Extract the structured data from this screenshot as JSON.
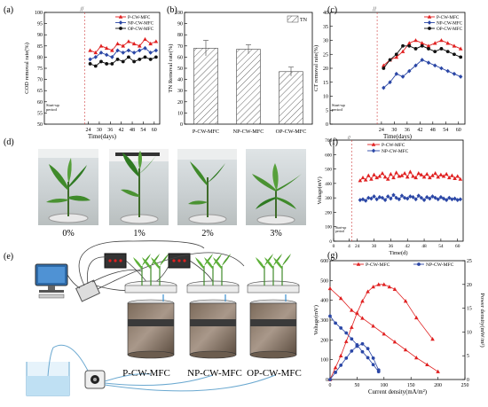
{
  "colors": {
    "p": "#e02020",
    "np": "#2b47a6",
    "op": "#111111",
    "hatch": "#666666",
    "plant": "#3f8a2a"
  },
  "chart_data": [
    {
      "panel": "(a)",
      "type": "line",
      "xlabel": "Time(days)",
      "ylabel": "COD removal rate(%)",
      "xticks": [
        24,
        30,
        36,
        42,
        48,
        54,
        60
      ],
      "xlim": [
        0,
        63
      ],
      "yticks": [
        50,
        55,
        60,
        65,
        70,
        75,
        80,
        85,
        90,
        95,
        100
      ],
      "ylim": [
        50,
        100
      ],
      "annotation": "Start-up period",
      "break": "//",
      "x": [
        25,
        28,
        31,
        34,
        37,
        40,
        43,
        46,
        49,
        52,
        55,
        58,
        61
      ],
      "series": [
        {
          "name": "P-CW-MFC",
          "color": "#e02020",
          "values": [
            83,
            82,
            85,
            84,
            83,
            86,
            85,
            87,
            86,
            85,
            88,
            86,
            87
          ]
        },
        {
          "name": "NP-CW-MFC",
          "color": "#2b47a6",
          "values": [
            79,
            80,
            82,
            81,
            80,
            83,
            82,
            83,
            82,
            83,
            84,
            82,
            83
          ]
        },
        {
          "name": "OP-CW-MFC",
          "color": "#111111",
          "values": [
            77,
            76,
            78,
            77,
            77,
            79,
            78,
            80,
            78,
            79,
            80,
            79,
            80
          ]
        }
      ]
    },
    {
      "panel": "(b)",
      "type": "bar",
      "ylabel": "TN Removal rate(%)",
      "legend": "TN",
      "categories": [
        "P-CW-MFC",
        "NP-CW-MFC",
        "OP-CW-MFC"
      ],
      "values": [
        68,
        67,
        47
      ],
      "errors": [
        7,
        4,
        4
      ],
      "yticks": [
        0,
        10,
        20,
        30,
        40,
        50,
        60,
        70,
        80,
        90,
        100
      ],
      "ylim": [
        0,
        100
      ]
    },
    {
      "panel": "(c)",
      "type": "line",
      "xlabel": "Time(days)",
      "ylabel": "CT removal rate(%)",
      "xticks": [
        24,
        30,
        36,
        42,
        48,
        54,
        60
      ],
      "xlim": [
        0,
        63
      ],
      "yticks": [
        0,
        5,
        10,
        15,
        20,
        25,
        30,
        35,
        40
      ],
      "ylim": [
        0,
        40
      ],
      "annotation": "Start-up period",
      "break": "//",
      "x": [
        25,
        28,
        31,
        34,
        37,
        40,
        43,
        46,
        49,
        52,
        55,
        58,
        61
      ],
      "series": [
        {
          "name": "P-CW-MFC",
          "color": "#e02020",
          "values": [
            21,
            23,
            24,
            26,
            29,
            30,
            29,
            28,
            29,
            30,
            29,
            28,
            27
          ]
        },
        {
          "name": "NP-CW-MFC",
          "color": "#2b47a6",
          "values": [
            13,
            15,
            18,
            17,
            19,
            21,
            23,
            22,
            21,
            20,
            19,
            18,
            17
          ]
        },
        {
          "name": "OP-CW-MFC",
          "color": "#111111",
          "values": [
            20,
            23,
            25,
            28,
            28,
            27,
            28,
            27,
            26,
            27,
            26,
            25,
            24
          ]
        }
      ]
    },
    {
      "panel": "(f)",
      "type": "line",
      "xlabel": "Time(d)",
      "ylabel": "Voltage(mV)",
      "xticks": [
        0,
        4,
        24,
        30,
        36,
        42,
        48,
        54,
        60
      ],
      "xlim": [
        0,
        62
      ],
      "yticks": [
        0,
        100,
        200,
        300,
        400,
        500,
        600,
        700
      ],
      "ylim": [
        0,
        700
      ],
      "annotation": "Start-up period",
      "break": "//",
      "x": [
        25,
        26,
        27,
        28,
        29,
        30,
        31,
        32,
        33,
        34,
        35,
        36,
        37,
        38,
        39,
        40,
        41,
        42,
        43,
        44,
        45,
        46,
        47,
        48,
        49,
        50,
        51,
        52,
        53,
        54,
        55,
        56,
        57,
        58,
        59,
        60,
        61
      ],
      "series": [
        {
          "name": "P-CW-MFC",
          "color": "#e02020",
          "values": [
            420,
            440,
            425,
            455,
            430,
            460,
            440,
            450,
            470,
            445,
            430,
            465,
            440,
            475,
            450,
            455,
            470,
            445,
            480,
            450,
            440,
            470,
            460,
            445,
            465,
            440,
            455,
            470,
            445,
            460,
            450,
            465,
            440,
            455,
            435,
            450,
            430
          ]
        },
        {
          "name": "NP-CW-MFC",
          "color": "#2b47a6",
          "values": [
            285,
            290,
            280,
            300,
            295,
            310,
            290,
            305,
            300,
            285,
            310,
            295,
            320,
            300,
            290,
            315,
            300,
            295,
            310,
            305,
            290,
            315,
            300,
            285,
            305,
            295,
            310,
            300,
            290,
            305,
            295,
            285,
            300,
            290,
            295,
            285,
            290
          ]
        }
      ]
    },
    {
      "panel": "(g)",
      "type": "line",
      "xlabel": "Current density(mA/m²)",
      "ylabel": "Voltage(mV)",
      "y2label": "Power density(mW/m²)",
      "xticks": [
        0,
        50,
        100,
        150,
        200,
        250
      ],
      "xlim": [
        0,
        250
      ],
      "yticks": [
        0,
        100,
        200,
        300,
        400,
        500,
        600
      ],
      "ylim": [
        0,
        600
      ],
      "y2ticks": [
        0,
        5,
        10,
        15,
        20,
        25
      ],
      "y2lim": [
        0,
        25
      ],
      "series": [
        {
          "name": "P-CW-MFC",
          "color": "#e02020",
          "kind": "voltage",
          "x": [
            0,
            20,
            40,
            60,
            80,
            100,
            120,
            140,
            160,
            180,
            200
          ],
          "values": [
            460,
            410,
            350,
            310,
            270,
            230,
            190,
            150,
            110,
            75,
            40
          ]
        },
        {
          "name": "P-CW-MFC",
          "color": "#e02020",
          "kind": "power",
          "x": [
            0,
            10,
            20,
            30,
            40,
            50,
            60,
            70,
            80,
            90,
            100,
            110,
            120,
            140,
            160,
            190
          ],
          "values": [
            0,
            2.5,
            5,
            8,
            11,
            14,
            16.5,
            18.5,
            19.5,
            20,
            20,
            19.5,
            19,
            16.5,
            13,
            8.5
          ]
        },
        {
          "name": "NP-CW-MFC",
          "color": "#2b47a6",
          "kind": "voltage",
          "x": [
            0,
            10,
            20,
            30,
            40,
            50,
            60,
            70,
            80,
            90
          ],
          "values": [
            320,
            285,
            260,
            235,
            205,
            175,
            140,
            110,
            75,
            40
          ]
        },
        {
          "name": "NP-CW-MFC",
          "color": "#2b47a6",
          "kind": "power",
          "x": [
            0,
            10,
            20,
            30,
            40,
            50,
            60,
            70,
            80,
            90
          ],
          "values": [
            0,
            1.5,
            3,
            4.5,
            6,
            7,
            7.5,
            6.5,
            4.5,
            2
          ]
        }
      ]
    }
  ],
  "panel_d": {
    "label": "(d)",
    "captions": [
      "0%",
      "1%",
      "2%",
      "3%"
    ]
  },
  "panel_e": {
    "label": "(e)",
    "reactors": [
      "P-CW-MFC",
      "NP-CW-MFC",
      "OP-CW-MFC"
    ]
  }
}
